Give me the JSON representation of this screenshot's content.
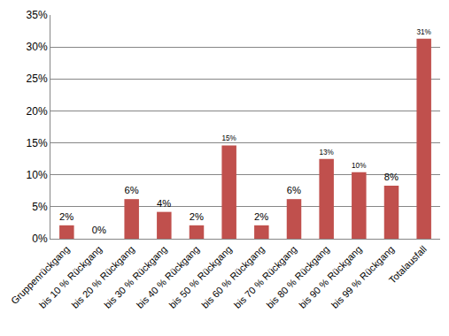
{
  "chart_data": {
    "type": "bar",
    "categories": [
      "Gruppenrückgang",
      "bis 10 % Rückgang",
      "bis 20 % Rückgang",
      "bis 30 % Rückgang",
      "bis 40 % Rückgang",
      "bis 50 % Rückgang",
      "bis 60 % Rückgang",
      "bis 70 % Rückgang",
      "bis 80 % Rückgang",
      "bis 90 % Rückgang",
      "bis 99 % Rückgang",
      "Totalausfall"
    ],
    "values": [
      2.1,
      0,
      6.2,
      4.2,
      2.1,
      14.6,
      2.1,
      6.2,
      12.5,
      10.4,
      8.3,
      31.3
    ],
    "value_labels": [
      "2%",
      "0%",
      "6%",
      "4%",
      "2%",
      "15%",
      "2%",
      "6%",
      "13%",
      "10%",
      "8%",
      "31%"
    ],
    "color": "#c0504d",
    "ylim": [
      0,
      35
    ],
    "yticks": [
      {
        "value": 0,
        "label": "0%"
      },
      {
        "value": 5,
        "label": "5%"
      },
      {
        "value": 10,
        "label": "10%"
      },
      {
        "value": 15,
        "label": "15%"
      },
      {
        "value": 20,
        "label": "20%"
      },
      {
        "value": 25,
        "label": "25%"
      },
      {
        "value": 30,
        "label": "30%"
      },
      {
        "value": 35,
        "label": "35%"
      }
    ],
    "grid": true,
    "data_labels": true
  }
}
